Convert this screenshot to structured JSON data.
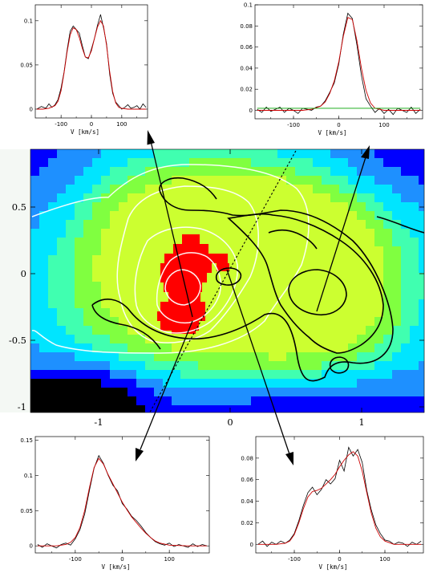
{
  "figure": {
    "map": {
      "x_ticks": [
        "-1",
        "0",
        "1"
      ],
      "y_ticks": [
        "0.5",
        "0",
        "-0.5",
        "-1"
      ],
      "x_tick_values": [
        -1,
        0,
        1
      ],
      "y_tick_values": [
        0.5,
        0,
        -0.5,
        -1
      ],
      "xlim": [
        -1.55,
        1.5
      ],
      "ylim": [
        -1.05,
        0.93
      ],
      "colormap": [
        "#000000",
        "#0000ff",
        "#1e90ff",
        "#00e5ff",
        "#40ffb0",
        "#80ff40",
        "#ccff30",
        "#ff0000"
      ]
    },
    "arrow_colors": {
      "arrow": "#000000"
    }
  },
  "chart_data": [
    {
      "type": "line",
      "panel": "top-left",
      "xlabel": "V [km/s]",
      "xlim": [
        -185,
        185
      ],
      "ylim": [
        -0.01,
        0.118
      ],
      "x_ticks": [
        "-100",
        "0",
        "100"
      ],
      "x_tick_values": [
        -100,
        0,
        100
      ],
      "y_ticks": [
        "0",
        "0.05",
        "0.1"
      ],
      "y_tick_values": [
        0,
        0.05,
        0.1
      ],
      "series": [
        {
          "role": "observed",
          "color": "#000000",
          "x": [
            -180,
            -165,
            -150,
            -140,
            -130,
            -120,
            -110,
            -100,
            -90,
            -80,
            -70,
            -60,
            -50,
            -40,
            -30,
            -20,
            -10,
            0,
            10,
            20,
            30,
            40,
            50,
            60,
            70,
            80,
            90,
            100,
            110,
            120,
            130,
            140,
            150,
            160,
            170,
            180
          ],
          "y": [
            0.0,
            0.003,
            0.001,
            0.006,
            0.002,
            0.005,
            0.011,
            0.024,
            0.042,
            0.067,
            0.088,
            0.094,
            0.09,
            0.086,
            0.072,
            0.059,
            0.057,
            0.068,
            0.08,
            0.095,
            0.107,
            0.092,
            0.074,
            0.04,
            0.018,
            0.008,
            0.004,
            0.0,
            0.002,
            0.005,
            0.001,
            0.002,
            0.004,
            0.0,
            0.006,
            0.002
          ]
        },
        {
          "role": "fit",
          "color": "#cc0000",
          "x": [
            -180,
            -160,
            -140,
            -120,
            -110,
            -100,
            -90,
            -80,
            -70,
            -60,
            -50,
            -40,
            -30,
            -20,
            -10,
            0,
            10,
            20,
            30,
            40,
            50,
            60,
            70,
            80,
            90,
            100,
            120,
            140,
            160,
            180
          ],
          "y": [
            0.0,
            0.0,
            0.001,
            0.004,
            0.009,
            0.021,
            0.041,
            0.065,
            0.084,
            0.092,
            0.09,
            0.081,
            0.069,
            0.059,
            0.058,
            0.066,
            0.08,
            0.093,
            0.1,
            0.094,
            0.072,
            0.043,
            0.02,
            0.007,
            0.002,
            0.001,
            0.0,
            0.0,
            0.0,
            0.0
          ]
        }
      ]
    },
    {
      "type": "line",
      "panel": "top-right",
      "xlabel": "V [km/s]",
      "xlim": [
        -185,
        185
      ],
      "ylim": [
        -0.008,
        0.1
      ],
      "x_ticks": [
        "-100",
        "0",
        "100"
      ],
      "x_tick_values": [
        -100,
        0,
        100
      ],
      "y_ticks": [
        "0",
        "0.02",
        "0.04",
        "0.06",
        "0.08",
        "0.1"
      ],
      "y_tick_values": [
        0,
        0.02,
        0.04,
        0.06,
        0.08,
        0.1
      ],
      "series": [
        {
          "role": "observed",
          "color": "#000000",
          "x": [
            -180,
            -170,
            -160,
            -150,
            -140,
            -130,
            -120,
            -110,
            -100,
            -90,
            -80,
            -70,
            -60,
            -50,
            -40,
            -30,
            -20,
            -10,
            0,
            10,
            20,
            30,
            40,
            50,
            60,
            70,
            80,
            90,
            100,
            110,
            120,
            130,
            140,
            150,
            160,
            170,
            180
          ],
          "y": [
            0.001,
            -0.002,
            0.003,
            -0.001,
            0.001,
            0.003,
            -0.002,
            0.002,
            0.0,
            -0.003,
            0.002,
            0.001,
            0.0,
            0.003,
            0.004,
            0.009,
            0.017,
            0.026,
            0.044,
            0.072,
            0.092,
            0.087,
            0.062,
            0.033,
            0.011,
            0.004,
            -0.002,
            0.002,
            -0.003,
            0.001,
            -0.004,
            0.002,
            0.0,
            -0.002,
            0.003,
            -0.003,
            0.001
          ]
        },
        {
          "role": "fit",
          "color": "#cc0000",
          "x": [
            -180,
            -120,
            -80,
            -60,
            -40,
            -30,
            -20,
            -10,
            0,
            10,
            20,
            30,
            40,
            50,
            60,
            70,
            80,
            100,
            140,
            180
          ],
          "y": [
            0.0,
            0.0,
            0.0,
            0.001,
            0.004,
            0.008,
            0.016,
            0.028,
            0.046,
            0.07,
            0.088,
            0.086,
            0.066,
            0.04,
            0.019,
            0.007,
            0.002,
            0.0,
            0.0,
            0.0
          ]
        },
        {
          "role": "baseline",
          "color": "#00a000",
          "x": [
            -180,
            180
          ],
          "y": [
            0.002,
            0.002
          ]
        }
      ]
    },
    {
      "type": "line",
      "panel": "bottom-left",
      "xlabel": "V [km/s]",
      "xlim": [
        -185,
        185
      ],
      "ylim": [
        -0.01,
        0.155
      ],
      "x_ticks": [
        "-100",
        "0",
        "100"
      ],
      "x_tick_values": [
        -100,
        0,
        100
      ],
      "y_ticks": [
        "0",
        "0.05",
        "0.1",
        "0.15"
      ],
      "y_tick_values": [
        0,
        0.05,
        0.1,
        0.15
      ],
      "series": [
        {
          "role": "observed",
          "color": "#000000",
          "x": [
            -180,
            -170,
            -160,
            -150,
            -140,
            -130,
            -120,
            -110,
            -100,
            -90,
            -80,
            -70,
            -60,
            -50,
            -40,
            -30,
            -20,
            -10,
            0,
            10,
            20,
            30,
            40,
            50,
            60,
            70,
            80,
            90,
            100,
            110,
            120,
            130,
            140,
            150,
            160,
            170,
            180
          ],
          "y": [
            0.002,
            -0.002,
            0.003,
            0.0,
            -0.003,
            0.002,
            0.004,
            0.001,
            0.01,
            0.023,
            0.045,
            0.078,
            0.11,
            0.128,
            0.117,
            0.1,
            0.086,
            0.078,
            0.06,
            0.052,
            0.042,
            0.036,
            0.028,
            0.019,
            0.012,
            0.006,
            0.003,
            0.001,
            0.004,
            -0.001,
            0.002,
            0.0,
            -0.002,
            0.003,
            -0.001,
            0.002,
            0.0
          ]
        },
        {
          "role": "fit",
          "color": "#cc0000",
          "x": [
            -180,
            -140,
            -120,
            -110,
            -100,
            -90,
            -80,
            -70,
            -60,
            -50,
            -40,
            -30,
            -20,
            -10,
            0,
            10,
            20,
            30,
            40,
            50,
            60,
            70,
            80,
            100,
            140,
            180
          ],
          "y": [
            0.0,
            0.0,
            0.002,
            0.005,
            0.012,
            0.026,
            0.05,
            0.082,
            0.111,
            0.124,
            0.116,
            0.101,
            0.088,
            0.075,
            0.062,
            0.051,
            0.041,
            0.033,
            0.025,
            0.018,
            0.012,
            0.007,
            0.004,
            0.001,
            0.0,
            0.0
          ]
        }
      ]
    },
    {
      "type": "line",
      "panel": "bottom-right",
      "xlabel": "V [km/s]",
      "xlim": [
        -185,
        185
      ],
      "ylim": [
        -0.008,
        0.1
      ],
      "x_ticks": [
        "-100",
        "0",
        "100"
      ],
      "x_tick_values": [
        -100,
        0,
        100
      ],
      "y_ticks": [
        "0",
        "0.02",
        "0.04",
        "0.06",
        "0.08"
      ],
      "y_tick_values": [
        0,
        0.02,
        0.04,
        0.06,
        0.08
      ],
      "series": [
        {
          "role": "observed",
          "color": "#000000",
          "x": [
            -180,
            -170,
            -160,
            -150,
            -140,
            -130,
            -120,
            -110,
            -100,
            -90,
            -80,
            -70,
            -60,
            -50,
            -40,
            -30,
            -20,
            -10,
            0,
            10,
            20,
            30,
            40,
            50,
            60,
            70,
            80,
            90,
            100,
            110,
            120,
            130,
            140,
            150,
            160,
            170,
            180
          ],
          "y": [
            0.0,
            0.003,
            -0.002,
            0.002,
            0.0,
            0.003,
            0.001,
            0.004,
            0.01,
            0.022,
            0.036,
            0.048,
            0.053,
            0.046,
            0.051,
            0.06,
            0.056,
            0.061,
            0.078,
            0.068,
            0.09,
            0.082,
            0.088,
            0.076,
            0.05,
            0.032,
            0.018,
            0.01,
            0.004,
            0.003,
            0.0,
            0.002,
            0.001,
            -0.002,
            0.002,
            0.0,
            0.003
          ]
        },
        {
          "role": "fit",
          "color": "#cc0000",
          "x": [
            -180,
            -140,
            -120,
            -110,
            -100,
            -90,
            -80,
            -70,
            -60,
            -50,
            -40,
            -30,
            -20,
            -10,
            0,
            10,
            20,
            30,
            40,
            50,
            60,
            70,
            80,
            90,
            100,
            120,
            140,
            180
          ],
          "y": [
            0.0,
            0.0,
            0.001,
            0.003,
            0.009,
            0.02,
            0.033,
            0.044,
            0.049,
            0.05,
            0.052,
            0.056,
            0.06,
            0.065,
            0.072,
            0.078,
            0.083,
            0.086,
            0.082,
            0.068,
            0.048,
            0.029,
            0.015,
            0.007,
            0.003,
            0.0,
            0.0,
            0.0
          ]
        }
      ]
    }
  ]
}
